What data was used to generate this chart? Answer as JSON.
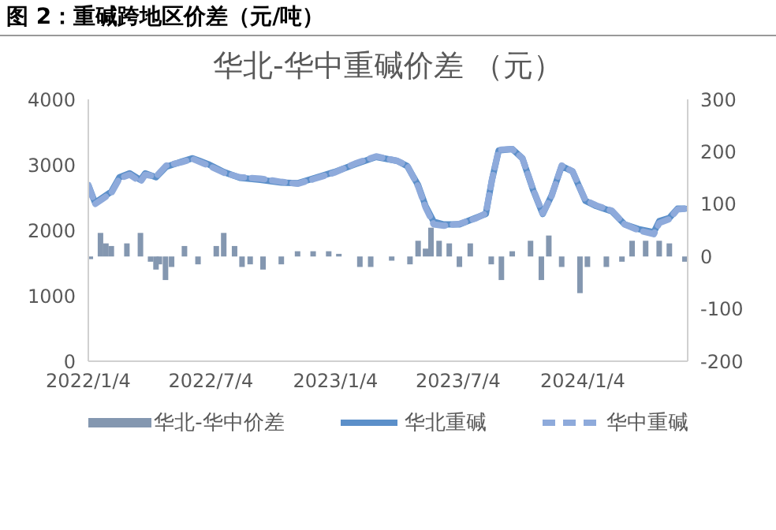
{
  "chart_data": {
    "type": "line",
    "title": "图 2：重碱跨地区价差（元/吨）",
    "subtitle": "华北-华中重碱价差 （元）",
    "xlim": [
      "2022-01-04",
      "2024-06-07"
    ],
    "xticks": [
      {
        "value": "2022-01-04",
        "label": "2022/1/4"
      },
      {
        "value": "2022-07-04",
        "label": "2022/7/4"
      },
      {
        "value": "2023-01-04",
        "label": "2023/1/4"
      },
      {
        "value": "2023-07-04",
        "label": "2023/7/4"
      },
      {
        "value": "2024-01-04",
        "label": "2024/1/4"
      }
    ],
    "ylim": [
      0,
      4000
    ],
    "yticks": [
      0,
      1000,
      2000,
      3000,
      4000
    ],
    "y2lim": [
      -200,
      300
    ],
    "y2ticks": [
      -200,
      -100,
      0,
      100,
      200,
      300
    ],
    "legend": "bottom",
    "marker": "none",
    "series": [
      {
        "name": "华北-华中价差",
        "type": "bar",
        "axis": "y2",
        "color": "#8497b0",
        "x": [
          "2022-01-07",
          "2022-01-22",
          "2022-01-30",
          "2022-02-07",
          "2022-03-02",
          "2022-03-22",
          "2022-04-06",
          "2022-04-14",
          "2022-04-19",
          "2022-04-28",
          "2022-05-07",
          "2022-05-26",
          "2022-06-15",
          "2022-07-12",
          "2022-07-23",
          "2022-08-08",
          "2022-08-19",
          "2022-08-31",
          "2022-09-19",
          "2022-10-16",
          "2022-11-09",
          "2022-12-02",
          "2022-12-25",
          "2023-01-09",
          "2023-02-09",
          "2023-02-25",
          "2023-03-28",
          "2023-04-24",
          "2023-05-06",
          "2023-05-17",
          "2023-05-25",
          "2023-06-06",
          "2023-06-21",
          "2023-07-06",
          "2023-07-22",
          "2023-08-22",
          "2023-09-06",
          "2023-09-22",
          "2023-10-19",
          "2023-11-04",
          "2023-11-15",
          "2023-12-04",
          "2023-12-31",
          "2024-01-11",
          "2024-02-08",
          "2024-03-02",
          "2024-03-17",
          "2024-04-06",
          "2024-04-26",
          "2024-05-11",
          "2024-06-03"
        ],
        "values": [
          -5,
          45,
          25,
          20,
          25,
          45,
          -10,
          -25,
          -15,
          -45,
          -20,
          20,
          -15,
          20,
          45,
          20,
          -20,
          -15,
          -25,
          -15,
          10,
          10,
          10,
          5,
          -20,
          -20,
          -8,
          -15,
          30,
          15,
          55,
          30,
          25,
          -20,
          25,
          -15,
          -45,
          10,
          30,
          -45,
          40,
          -20,
          -70,
          -20,
          -20,
          -10,
          30,
          30,
          30,
          25,
          -10
        ]
      },
      {
        "name": "华北重碱",
        "color": "#5b8fc9",
        "line_style": "solid",
        "x": [
          "2022-01-04",
          "2022-01-14",
          "2022-02-07",
          "2022-02-19",
          "2022-03-06",
          "2022-03-22",
          "2022-03-29",
          "2022-04-14",
          "2022-04-29",
          "2022-05-22",
          "2022-06-07",
          "2022-06-30",
          "2022-07-23",
          "2022-08-16",
          "2022-09-15",
          "2022-10-16",
          "2022-11-09",
          "2022-12-02",
          "2023-01-02",
          "2023-02-02",
          "2023-03-05",
          "2023-04-05",
          "2023-04-20",
          "2023-05-06",
          "2023-05-17",
          "2023-05-29",
          "2023-06-13",
          "2023-07-06",
          "2023-07-30",
          "2023-08-14",
          "2023-08-23",
          "2023-09-02",
          "2023-09-22",
          "2023-10-07",
          "2023-10-23",
          "2023-11-06",
          "2023-11-19",
          "2023-12-04",
          "2023-12-20",
          "2024-01-08",
          "2024-01-24",
          "2024-02-16",
          "2024-03-06",
          "2024-03-26",
          "2024-04-18",
          "2024-04-26",
          "2024-05-11",
          "2024-05-23",
          "2024-06-03"
        ],
        "values": [
          2690,
          2420,
          2590,
          2810,
          2870,
          2770,
          2870,
          2810,
          2970,
          3050,
          3100,
          3010,
          2890,
          2800,
          2770,
          2730,
          2720,
          2790,
          2890,
          3010,
          3120,
          3060,
          2980,
          2690,
          2370,
          2130,
          2090,
          2090,
          2190,
          2250,
          2770,
          3220,
          3240,
          3100,
          2610,
          2250,
          2530,
          2980,
          2900,
          2450,
          2370,
          2290,
          2090,
          2020,
          1970,
          2140,
          2190,
          2330,
          2330
        ]
      },
      {
        "name": "华中重碱",
        "color": "#8eaadb",
        "line_style": "dashed",
        "x": [
          "2022-01-04",
          "2022-01-14",
          "2022-02-07",
          "2022-02-19",
          "2022-03-06",
          "2022-03-22",
          "2022-03-29",
          "2022-04-14",
          "2022-04-29",
          "2022-05-22",
          "2022-06-07",
          "2022-06-30",
          "2022-07-23",
          "2022-08-16",
          "2022-09-15",
          "2022-10-16",
          "2022-11-09",
          "2022-12-02",
          "2023-01-02",
          "2023-02-02",
          "2023-03-05",
          "2023-04-05",
          "2023-04-20",
          "2023-05-06",
          "2023-05-17",
          "2023-05-29",
          "2023-06-13",
          "2023-07-06",
          "2023-07-30",
          "2023-08-14",
          "2023-08-23",
          "2023-09-02",
          "2023-09-22",
          "2023-10-07",
          "2023-10-23",
          "2023-11-06",
          "2023-11-19",
          "2023-12-04",
          "2023-12-20",
          "2024-01-08",
          "2024-01-24",
          "2024-02-16",
          "2024-03-06",
          "2024-03-26",
          "2024-04-18",
          "2024-04-26",
          "2024-05-11",
          "2024-05-23",
          "2024-06-03"
        ],
        "values": [
          2690,
          2400,
          2570,
          2790,
          2850,
          2740,
          2850,
          2820,
          2990,
          3040,
          3090,
          2990,
          2880,
          2810,
          2790,
          2740,
          2710,
          2780,
          2880,
          3020,
          3130,
          3060,
          2990,
          2670,
          2350,
          2090,
          2070,
          2100,
          2180,
          2260,
          2770,
          3230,
          3240,
          3100,
          2620,
          2260,
          2520,
          2990,
          2900,
          2460,
          2380,
          2300,
          2090,
          2000,
          1940,
          2110,
          2170,
          2320,
          2330
        ]
      }
    ]
  }
}
